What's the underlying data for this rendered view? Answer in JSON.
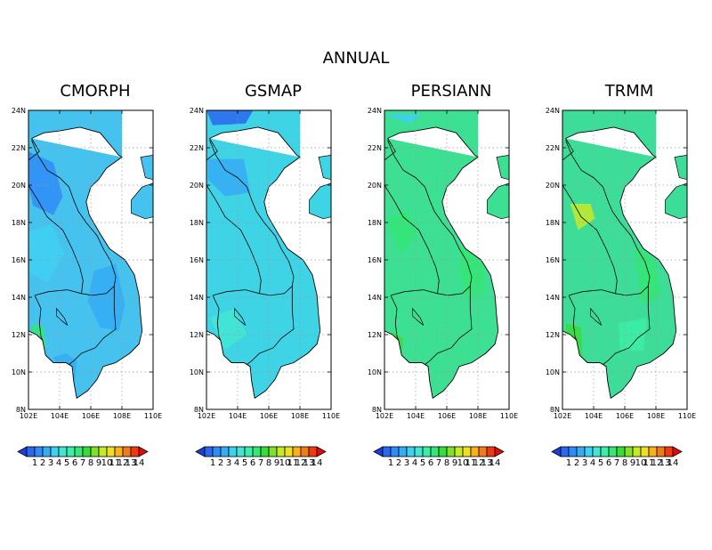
{
  "figure": {
    "title": "ANNUAL"
  },
  "axes": {
    "lat_ticks": [
      "8N",
      "10N",
      "12N",
      "14N",
      "16N",
      "18N",
      "20N",
      "22N",
      "24N"
    ],
    "lon_ticks": [
      "102E",
      "104E",
      "106E",
      "108E",
      "110E"
    ]
  },
  "colorbar": {
    "labels": [
      "1",
      "2",
      "3",
      "4",
      "5",
      "6",
      "7",
      "8",
      "9",
      "10",
      "11",
      "12",
      "13",
      "14"
    ],
    "colors": [
      "#1e3fd6",
      "#2a66f0",
      "#2f8cf6",
      "#35acf6",
      "#3fd0f2",
      "#43e6d2",
      "#3ceea8",
      "#33e874",
      "#3adc3c",
      "#7fe22a",
      "#c6ea26",
      "#f0e022",
      "#f8b01c",
      "#f47a16",
      "#ee3a10",
      "#e00a0a"
    ],
    "background": "#ffffff"
  },
  "panels": [
    {
      "title": "CMORPH",
      "base": "#45c3ee"
    },
    {
      "title": "GSMAP",
      "base": "#3fd3e6"
    },
    {
      "title": "PERSIANN",
      "base": "#3ddf93"
    },
    {
      "title": "TRMM",
      "base": "#3ddd99"
    }
  ]
}
